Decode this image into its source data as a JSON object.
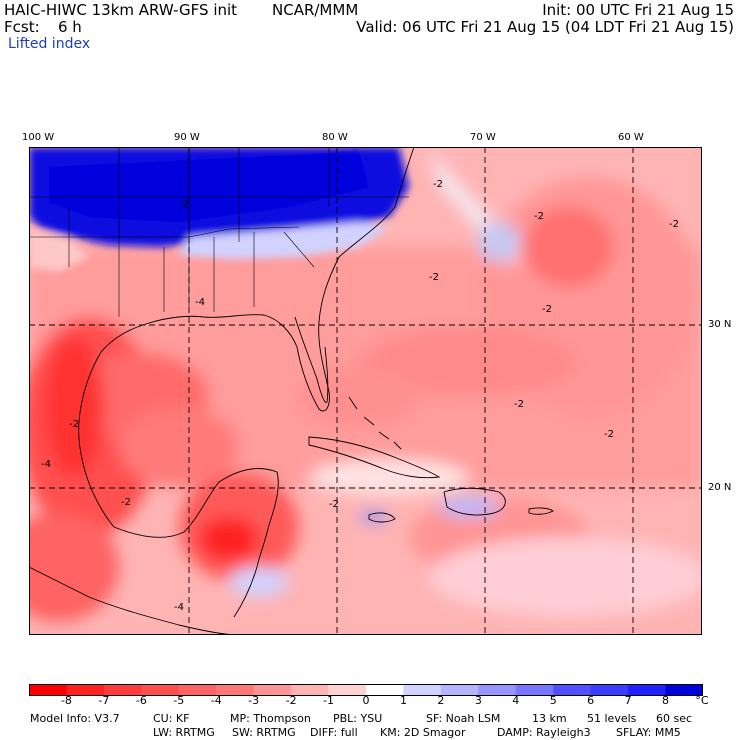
{
  "header": {
    "model_title": "HAIC-HIWC 13km ARW-GFS init",
    "org": "NCAR/MMM",
    "init": "Init: 00 UTC Fri 21 Aug 15",
    "fcst_label": "Fcst:",
    "fcst_value": "6 h",
    "valid": "Valid: 06 UTC Fri 21 Aug 15 (04 LDT Fri 21 Aug 15)",
    "field": "Lifted index"
  },
  "map": {
    "lon_labels": [
      "100 W",
      "90 W",
      "80 W",
      "70 W",
      "60 W"
    ],
    "lat_labels": [
      "30 N",
      "20 N"
    ],
    "contour_labels": [
      "-2",
      "-2",
      "-2",
      "-2",
      "-2",
      "-2",
      "-2",
      "-2",
      "-2",
      "-4",
      "-4",
      "-4",
      "-2",
      "-2"
    ]
  },
  "colorbar": {
    "ticks": [
      "-8",
      "-7",
      "-6",
      "-5",
      "-4",
      "-3",
      "-2",
      "-1",
      "0",
      "1",
      "2",
      "3",
      "4",
      "5",
      "6",
      "7",
      "8"
    ],
    "unit": "°C",
    "colors": [
      "#ff0000",
      "#ff2020",
      "#ff3c3c",
      "#ff5050",
      "#ff6464",
      "#ff7878",
      "#ff9696",
      "#ffb4b4",
      "#ffd2d2",
      "#ffffff",
      "#d2d2ff",
      "#b4b4ff",
      "#9696ff",
      "#7878ff",
      "#5050ff",
      "#3c3cff",
      "#2020ff",
      "#0000dd"
    ]
  },
  "footer": {
    "line1": [
      "Model Info: V3.7",
      "CU: KF",
      "MP: Thompson",
      "PBL: YSU",
      "SF: Noah LSM",
      "13 km",
      "51 levels",
      "60 sec"
    ],
    "line2": [
      "LW: RRTMG",
      "SW: RRTMG",
      "DIFF: full",
      "KM: 2D Smagor",
      "DAMP: Rayleigh3",
      "SFLAY: MM5"
    ]
  }
}
